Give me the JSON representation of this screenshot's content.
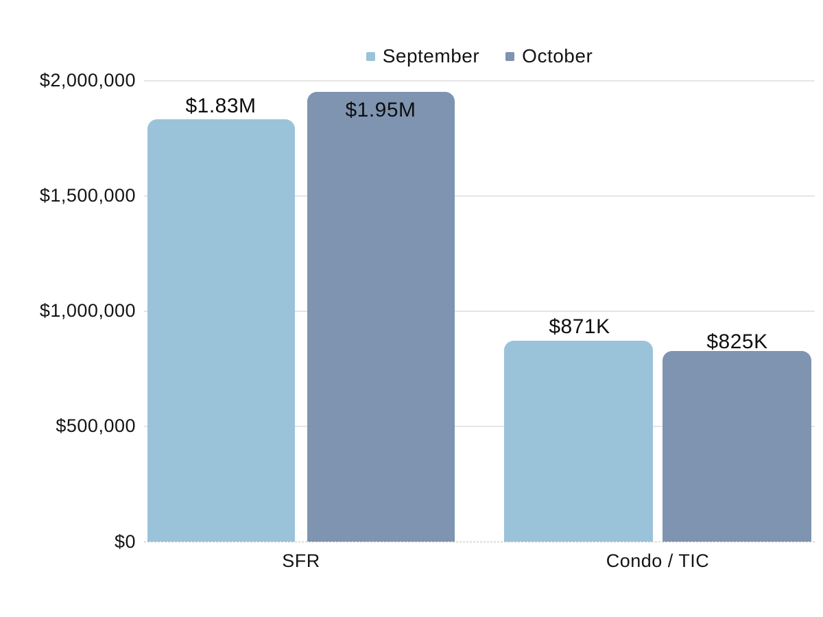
{
  "chart_data": {
    "type": "bar",
    "title": "",
    "categories": [
      "SFR",
      "Condo / TIC"
    ],
    "series": [
      {
        "name": "September",
        "color": "#9AC3DA",
        "values": [
          1830000,
          871000
        ],
        "data_labels": [
          "$1.83M",
          "$871K"
        ]
      },
      {
        "name": "October",
        "color": "#7E94B0",
        "values": [
          1950000,
          825000
        ],
        "data_labels": [
          "$1.95M",
          "$825K"
        ]
      }
    ],
    "xlabel": "",
    "ylabel": "",
    "ylim": [
      0,
      2000000
    ],
    "ytick_interval": 500000,
    "ytick_labels_top_to_bottom": [
      "$2,000,000",
      "$1,500,000",
      "$1,000,000",
      "$500,000",
      "$0"
    ],
    "grid": "horizontal",
    "gridline_color": "#E5E5E5",
    "baseline_style": "dashed",
    "legend_position": "top-center",
    "background_color": "#FFFFFF",
    "text_color": "#141414"
  },
  "legend": {
    "items": [
      {
        "label": "September",
        "color": "#9AC3DA"
      },
      {
        "label": "October",
        "color": "#7E94B0"
      }
    ]
  },
  "y_axis": {
    "labels": [
      "$2,000,000",
      "$1,500,000",
      "$1,000,000",
      "$500,000",
      "$0"
    ]
  },
  "x_axis": {
    "labels": [
      "SFR",
      "Condo / TIC"
    ]
  }
}
